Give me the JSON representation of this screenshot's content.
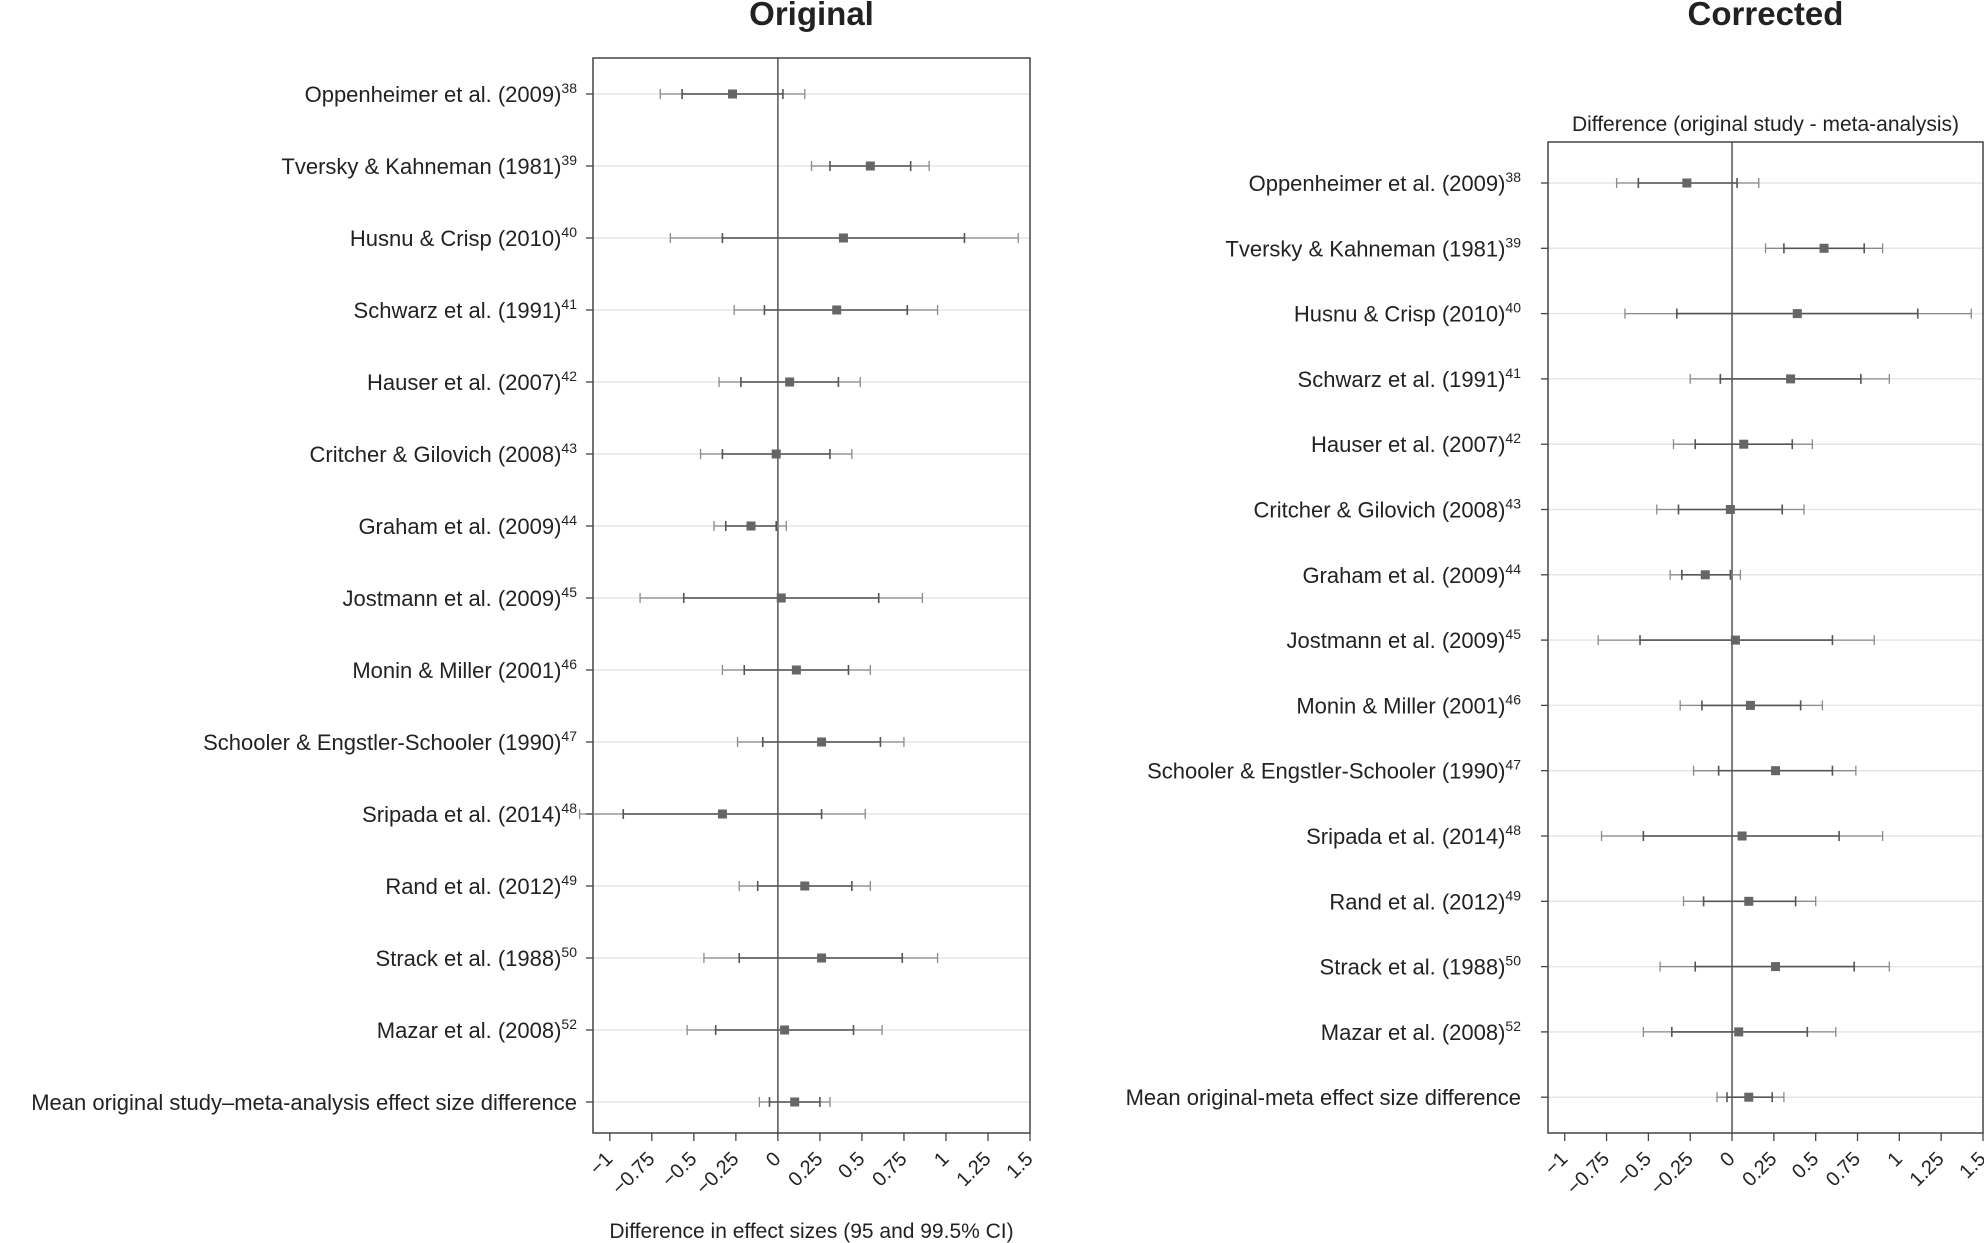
{
  "chart_data": [
    {
      "type": "forest",
      "title": "Original",
      "subtitle": "",
      "xlabel": "Difference in effect sizes (95 and 99.5% CI)",
      "xlim": [
        -1.1,
        1.5
      ],
      "xticks": [
        "-1",
        "-0.75",
        "-0.5",
        "-0.25",
        "0",
        "0.25",
        "0.5",
        "0.75",
        "1",
        "1.25",
        "1.5"
      ],
      "grid": true,
      "studies": [
        {
          "label": "Oppenheimer et al. (2009)",
          "ref": "38",
          "est": -0.27,
          "ci95": [
            -0.57,
            0.03
          ],
          "ci995": [
            -0.7,
            0.16
          ]
        },
        {
          "label": "Tversky & Kahneman (1981)",
          "ref": "39",
          "est": 0.55,
          "ci95": [
            0.31,
            0.79
          ],
          "ci995": [
            0.2,
            0.9
          ]
        },
        {
          "label": "Husnu & Crisp (2010)",
          "ref": "40",
          "est": 0.39,
          "ci95": [
            -0.33,
            1.11
          ],
          "ci995": [
            -0.64,
            1.43
          ]
        },
        {
          "label": "Schwarz et al. (1991)",
          "ref": "41",
          "est": 0.35,
          "ci95": [
            -0.08,
            0.77
          ],
          "ci995": [
            -0.26,
            0.95
          ]
        },
        {
          "label": "Hauser et al. (2007)",
          "ref": "42",
          "est": 0.07,
          "ci95": [
            -0.22,
            0.36
          ],
          "ci995": [
            -0.35,
            0.49
          ]
        },
        {
          "label": "Critcher & Gilovich (2008)",
          "ref": "43",
          "est": -0.01,
          "ci95": [
            -0.33,
            0.31
          ],
          "ci995": [
            -0.46,
            0.44
          ]
        },
        {
          "label": "Graham et al. (2009)",
          "ref": "44",
          "est": -0.16,
          "ci95": [
            -0.31,
            -0.01
          ],
          "ci995": [
            -0.38,
            0.05
          ]
        },
        {
          "label": "Jostmann et al. (2009)",
          "ref": "45",
          "est": 0.02,
          "ci95": [
            -0.56,
            0.6
          ],
          "ci995": [
            -0.82,
            0.86
          ]
        },
        {
          "label": "Monin & Miller (2001)",
          "ref": "46",
          "est": 0.11,
          "ci95": [
            -0.2,
            0.42
          ],
          "ci995": [
            -0.33,
            0.55
          ]
        },
        {
          "label": "Schooler & Engstler-Schooler (1990)",
          "ref": "47",
          "est": 0.26,
          "ci95": [
            -0.09,
            0.61
          ],
          "ci995": [
            -0.24,
            0.75
          ]
        },
        {
          "label": "Sripada et al. (2014)",
          "ref": "48",
          "est": -0.33,
          "ci95": [
            -0.92,
            0.26
          ],
          "ci995": [
            -1.18,
            0.52
          ]
        },
        {
          "label": "Rand et al. (2012)",
          "ref": "49",
          "est": 0.16,
          "ci95": [
            -0.12,
            0.44
          ],
          "ci995": [
            -0.23,
            0.55
          ]
        },
        {
          "label": "Strack et al. (1988)",
          "ref": "50",
          "est": 0.26,
          "ci95": [
            -0.23,
            0.74
          ],
          "ci995": [
            -0.44,
            0.95
          ]
        },
        {
          "label": "Mazar et al. (2008)",
          "ref": "52",
          "est": 0.04,
          "ci95": [
            -0.37,
            0.45
          ],
          "ci995": [
            -0.54,
            0.62
          ]
        },
        {
          "label": "Mean original study–meta-analysis effect size difference",
          "ref": "",
          "est": 0.1,
          "ci95": [
            -0.05,
            0.25
          ],
          "ci995": [
            -0.11,
            0.31
          ]
        }
      ]
    },
    {
      "type": "forest",
      "title": "Corrected",
      "subtitle": "Difference (original study - meta-analysis)",
      "xlabel": "",
      "xlim": [
        -1.1,
        1.5
      ],
      "xticks": [
        "-1",
        "-0.75",
        "-0.5",
        "-0.25",
        "0",
        "0.25",
        "0.5",
        "0.75",
        "1",
        "1.25",
        "1.5"
      ],
      "grid": true,
      "studies": [
        {
          "label": "Oppenheimer et al. (2009)",
          "ref": "38",
          "est": -0.27,
          "ci95": [
            -0.56,
            0.03
          ],
          "ci995": [
            -0.69,
            0.16
          ]
        },
        {
          "label": "Tversky & Kahneman (1981)",
          "ref": "39",
          "est": 0.55,
          "ci95": [
            0.31,
            0.79
          ],
          "ci995": [
            0.2,
            0.9
          ]
        },
        {
          "label": "Husnu & Crisp (2010)",
          "ref": "40",
          "est": 0.39,
          "ci95": [
            -0.33,
            1.11
          ],
          "ci995": [
            -0.64,
            1.43
          ]
        },
        {
          "label": "Schwarz et al. (1991)",
          "ref": "41",
          "est": 0.35,
          "ci95": [
            -0.07,
            0.77
          ],
          "ci995": [
            -0.25,
            0.94
          ]
        },
        {
          "label": "Hauser et al. (2007)",
          "ref": "42",
          "est": 0.07,
          "ci95": [
            -0.22,
            0.36
          ],
          "ci995": [
            -0.35,
            0.48
          ]
        },
        {
          "label": "Critcher & Gilovich (2008)",
          "ref": "43",
          "est": -0.01,
          "ci95": [
            -0.32,
            0.3
          ],
          "ci995": [
            -0.45,
            0.43
          ]
        },
        {
          "label": "Graham et al. (2009)",
          "ref": "44",
          "est": -0.16,
          "ci95": [
            -0.3,
            -0.01
          ],
          "ci995": [
            -0.37,
            0.05
          ]
        },
        {
          "label": "Jostmann et al. (2009)",
          "ref": "45",
          "est": 0.02,
          "ci95": [
            -0.55,
            0.6
          ],
          "ci995": [
            -0.8,
            0.85
          ]
        },
        {
          "label": "Monin & Miller (2001)",
          "ref": "46",
          "est": 0.11,
          "ci95": [
            -0.18,
            0.41
          ],
          "ci995": [
            -0.31,
            0.54
          ]
        },
        {
          "label": "Schooler & Engstler-Schooler (1990)",
          "ref": "47",
          "est": 0.26,
          "ci95": [
            -0.08,
            0.6
          ],
          "ci995": [
            -0.23,
            0.74
          ]
        },
        {
          "label": "Sripada et al. (2014)",
          "ref": "48",
          "est": 0.06,
          "ci95": [
            -0.53,
            0.64
          ],
          "ci995": [
            -0.78,
            0.9
          ]
        },
        {
          "label": "Rand et al. (2012)",
          "ref": "49",
          "est": 0.1,
          "ci95": [
            -0.17,
            0.38
          ],
          "ci995": [
            -0.29,
            0.5
          ]
        },
        {
          "label": "Strack et al. (1988)",
          "ref": "50",
          "est": 0.26,
          "ci95": [
            -0.22,
            0.73
          ],
          "ci995": [
            -0.43,
            0.94
          ]
        },
        {
          "label": "Mazar et al. (2008)",
          "ref": "52",
          "est": 0.04,
          "ci95": [
            -0.36,
            0.45
          ],
          "ci995": [
            -0.53,
            0.62
          ]
        },
        {
          "label": "Mean original-meta effect size difference",
          "ref": "",
          "est": 0.1,
          "ci95": [
            -0.03,
            0.24
          ],
          "ci995": [
            -0.09,
            0.31
          ]
        }
      ]
    }
  ]
}
